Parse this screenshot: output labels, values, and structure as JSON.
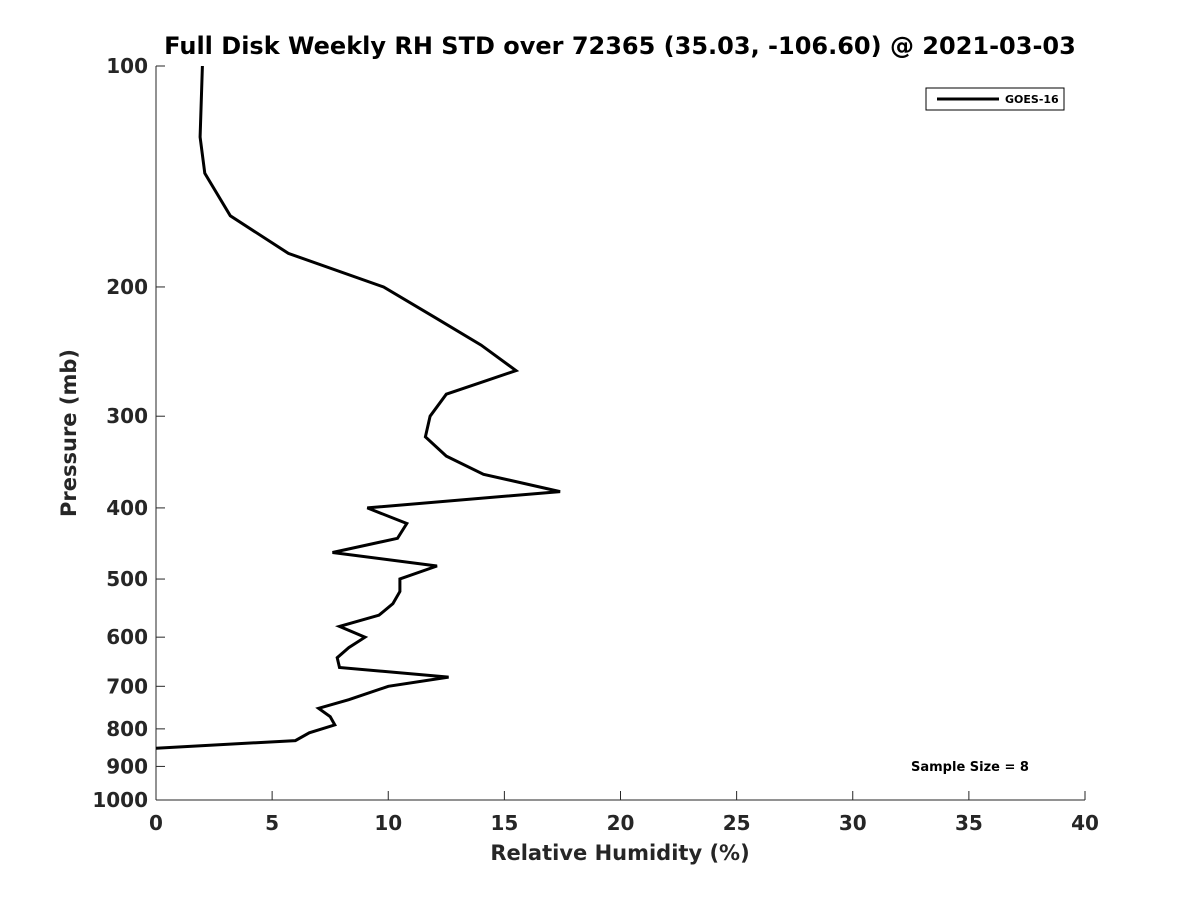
{
  "chart_data": {
    "type": "line",
    "title": "Full Disk Weekly RH STD over 72365 (35.03, -106.60) @ 2021-03-03",
    "xlabel": "Relative Humidity (%)",
    "ylabel": "Pressure (mb)",
    "xlim": [
      0,
      40
    ],
    "ylim": [
      100,
      1000
    ],
    "y_scale": "log",
    "y_reversed": true,
    "x_ticks": [
      "0",
      "5",
      "10",
      "15",
      "20",
      "25",
      "30",
      "35",
      "40"
    ],
    "y_ticks": [
      "100",
      "200",
      "300",
      "400",
      "500",
      "600",
      "700",
      "800",
      "900",
      "1000"
    ],
    "grid": false,
    "legend": {
      "placement": "top-right",
      "entries": [
        "GOES-16"
      ]
    },
    "annotation": "Sample Size = 8",
    "series": [
      {
        "name": "GOES-16",
        "color": "#000000",
        "points": [
          {
            "x": 2.0,
            "y": 100
          },
          {
            "x": 1.9,
            "y": 125
          },
          {
            "x": 2.1,
            "y": 140
          },
          {
            "x": 3.2,
            "y": 160
          },
          {
            "x": 5.7,
            "y": 180
          },
          {
            "x": 9.8,
            "y": 200
          },
          {
            "x": 12.0,
            "y": 220
          },
          {
            "x": 14.0,
            "y": 240
          },
          {
            "x": 15.5,
            "y": 260
          },
          {
            "x": 12.5,
            "y": 280
          },
          {
            "x": 11.8,
            "y": 300
          },
          {
            "x": 11.6,
            "y": 320
          },
          {
            "x": 12.5,
            "y": 340
          },
          {
            "x": 14.1,
            "y": 360
          },
          {
            "x": 17.4,
            "y": 380
          },
          {
            "x": 9.1,
            "y": 400
          },
          {
            "x": 10.8,
            "y": 420
          },
          {
            "x": 10.4,
            "y": 440
          },
          {
            "x": 7.6,
            "y": 460
          },
          {
            "x": 12.1,
            "y": 480
          },
          {
            "x": 10.5,
            "y": 500
          },
          {
            "x": 10.5,
            "y": 520
          },
          {
            "x": 10.2,
            "y": 540
          },
          {
            "x": 9.6,
            "y": 560
          },
          {
            "x": 7.9,
            "y": 580
          },
          {
            "x": 9.0,
            "y": 600
          },
          {
            "x": 8.3,
            "y": 620
          },
          {
            "x": 7.8,
            "y": 640
          },
          {
            "x": 7.9,
            "y": 660
          },
          {
            "x": 12.6,
            "y": 680
          },
          {
            "x": 10.0,
            "y": 700
          },
          {
            "x": 8.3,
            "y": 730
          },
          {
            "x": 7.0,
            "y": 750
          },
          {
            "x": 7.5,
            "y": 770
          },
          {
            "x": 7.7,
            "y": 790
          },
          {
            "x": 6.6,
            "y": 810
          },
          {
            "x": 6.0,
            "y": 830
          },
          {
            "x": 0.0,
            "y": 850
          }
        ]
      }
    ]
  }
}
